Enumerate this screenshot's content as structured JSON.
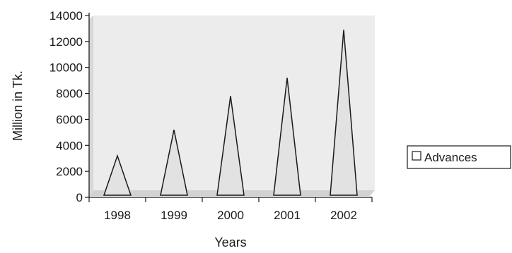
{
  "chart_data": {
    "type": "area",
    "subtype": "cone",
    "categories": [
      "1998",
      "1999",
      "2000",
      "2001",
      "2002"
    ],
    "series": [
      {
        "name": "Advances",
        "values": [
          3200,
          5200,
          7800,
          9200,
          12900
        ]
      }
    ],
    "xlabel": "Years",
    "ylabel": "Million in Tk.",
    "ylim": [
      0,
      14000
    ],
    "yticks": [
      "0",
      "2000",
      "4000",
      "6000",
      "8000",
      "10000",
      "12000",
      "14000"
    ],
    "grid": false,
    "legend_position": "right",
    "colors": {
      "fill": "#e2e2e2",
      "stroke": "#1a1a1a",
      "plot_bg": "#ebebeb",
      "floor": "#d8d8d8"
    }
  }
}
